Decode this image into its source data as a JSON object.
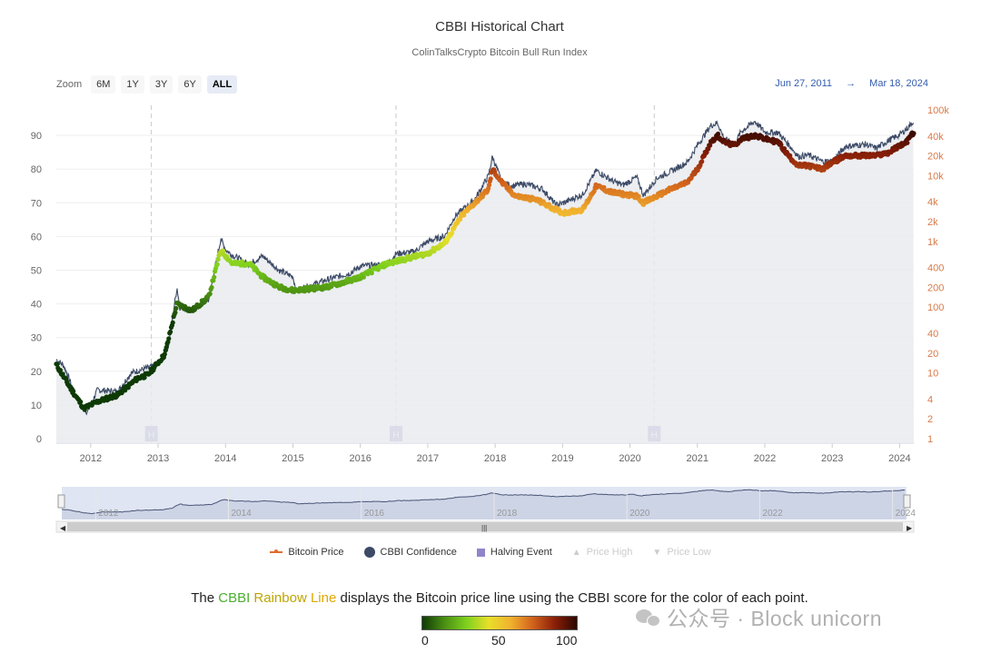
{
  "header": {
    "title": "CBBI Historical Chart",
    "subtitle": "ColinTalksCrypto Bitcoin Bull Run Index"
  },
  "zoom": {
    "label": "Zoom",
    "buttons": [
      "6M",
      "1Y",
      "3Y",
      "6Y",
      "ALL"
    ],
    "active": "ALL"
  },
  "range": {
    "from": "Jun 27, 2011",
    "arrow": "→",
    "to": "Mar 18, 2024"
  },
  "legend": {
    "price": "Bitcoin Price",
    "confidence": "CBBI Confidence",
    "halving": "Halving Event",
    "price_high": "Price High",
    "price_low": "Price Low"
  },
  "caption": {
    "pre": "The ",
    "w1": "CBBI",
    "w2": "Rainbow",
    "w3": "Line",
    "post": " displays the Bitcoin price line using the CBBI score for the color of each point."
  },
  "color_scale": {
    "labels": [
      "0",
      "50",
      "100"
    ],
    "stops": [
      "#0e3a06",
      "#4a8f12",
      "#7fd11e",
      "#e8df2a",
      "#f1b22e",
      "#d2621c",
      "#8a1f08",
      "#2b0600"
    ]
  },
  "watermark": {
    "text": "公众号 · Block unicorn"
  },
  "chart_data": {
    "type": "line",
    "x_ticks": [
      "2012",
      "2013",
      "2014",
      "2015",
      "2016",
      "2017",
      "2018",
      "2019",
      "2020",
      "2021",
      "2022",
      "2023",
      "2024"
    ],
    "navigator_ticks": [
      "2012",
      "2014",
      "2016",
      "2018",
      "2020",
      "2022",
      "2024"
    ],
    "y_left": {
      "ticks": [
        "0",
        "10",
        "20",
        "30",
        "40",
        "50",
        "60",
        "70",
        "80",
        "90"
      ],
      "range": [
        0,
        100
      ]
    },
    "y_right": {
      "ticks": [
        "1",
        "2",
        "4",
        "10",
        "20",
        "40",
        "100",
        "200",
        "400",
        "1k",
        "2k",
        "4k",
        "10k",
        "20k",
        "40k",
        "100k"
      ],
      "scale": "log"
    },
    "halving_label": "H",
    "halvings": [
      2012.9,
      2016.53,
      2020.36
    ],
    "colors": {
      "price_line": "#3c4a66",
      "price_fill": "#e9ebef",
      "halving": "#8f86c9"
    },
    "series": [
      {
        "name": "Bitcoin Price",
        "points": [
          [
            2011.49,
            16
          ],
          [
            2011.6,
            13
          ],
          [
            2011.8,
            4
          ],
          [
            2011.95,
            2.5
          ],
          [
            2012.1,
            5.5
          ],
          [
            2012.4,
            5.2
          ],
          [
            2012.6,
            10
          ],
          [
            2012.85,
            12
          ],
          [
            2013.0,
            13
          ],
          [
            2013.15,
            25
          ],
          [
            2013.28,
            200
          ],
          [
            2013.32,
            100
          ],
          [
            2013.5,
            90
          ],
          [
            2013.75,
            130
          ],
          [
            2013.93,
            1100
          ],
          [
            2014.0,
            750
          ],
          [
            2014.1,
            620
          ],
          [
            2014.35,
            450
          ],
          [
            2014.55,
            600
          ],
          [
            2014.8,
            360
          ],
          [
            2015.0,
            290
          ],
          [
            2015.05,
            180
          ],
          [
            2015.5,
            260
          ],
          [
            2015.85,
            330
          ],
          [
            2016.0,
            420
          ],
          [
            2016.4,
            450
          ],
          [
            2016.53,
            650
          ],
          [
            2016.8,
            700
          ],
          [
            2017.0,
            1000
          ],
          [
            2017.25,
            1200
          ],
          [
            2017.4,
            2400
          ],
          [
            2017.7,
            4400
          ],
          [
            2017.9,
            10000
          ],
          [
            2017.96,
            19500
          ],
          [
            2018.1,
            8000
          ],
          [
            2018.25,
            7000
          ],
          [
            2018.45,
            7500
          ],
          [
            2018.7,
            6300
          ],
          [
            2018.9,
            3600
          ],
          [
            2019.0,
            3800
          ],
          [
            2019.3,
            5200
          ],
          [
            2019.5,
            12000
          ],
          [
            2019.75,
            8200
          ],
          [
            2019.9,
            7200
          ],
          [
            2020.1,
            9500
          ],
          [
            2020.2,
            5000
          ],
          [
            2020.4,
            9200
          ],
          [
            2020.6,
            11500
          ],
          [
            2020.85,
            16000
          ],
          [
            2021.0,
            29000
          ],
          [
            2021.2,
            58000
          ],
          [
            2021.3,
            63000
          ],
          [
            2021.4,
            36000
          ],
          [
            2021.55,
            30000
          ],
          [
            2021.65,
            47000
          ],
          [
            2021.85,
            67000
          ],
          [
            2022.0,
            46000
          ],
          [
            2022.2,
            45000
          ],
          [
            2022.35,
            30000
          ],
          [
            2022.5,
            19500
          ],
          [
            2022.65,
            20500
          ],
          [
            2022.85,
            16500
          ],
          [
            2023.0,
            16600
          ],
          [
            2023.2,
            28000
          ],
          [
            2023.5,
            30000
          ],
          [
            2023.65,
            26000
          ],
          [
            2023.85,
            35000
          ],
          [
            2024.0,
            42000
          ],
          [
            2024.1,
            51000
          ],
          [
            2024.21,
            68000
          ]
        ]
      },
      {
        "name": "CBBI Confidence",
        "points": [
          [
            2011.49,
            22
          ],
          [
            2011.7,
            15
          ],
          [
            2011.9,
            9
          ],
          [
            2012.1,
            11
          ],
          [
            2012.4,
            13
          ],
          [
            2012.7,
            18
          ],
          [
            2012.85,
            19
          ],
          [
            2013.1,
            25
          ],
          [
            2013.28,
            40
          ],
          [
            2013.5,
            38
          ],
          [
            2013.75,
            42
          ],
          [
            2013.93,
            56
          ],
          [
            2014.1,
            52
          ],
          [
            2014.35,
            52
          ],
          [
            2014.55,
            48
          ],
          [
            2014.8,
            45
          ],
          [
            2015.0,
            44
          ],
          [
            2015.5,
            45
          ],
          [
            2015.85,
            47
          ],
          [
            2016.0,
            48
          ],
          [
            2016.4,
            52
          ],
          [
            2016.8,
            54
          ],
          [
            2017.0,
            55
          ],
          [
            2017.25,
            58
          ],
          [
            2017.5,
            66
          ],
          [
            2017.9,
            74
          ],
          [
            2017.96,
            80
          ],
          [
            2018.1,
            76
          ],
          [
            2018.3,
            72
          ],
          [
            2018.6,
            71
          ],
          [
            2018.9,
            68
          ],
          [
            2019.0,
            67
          ],
          [
            2019.3,
            68
          ],
          [
            2019.5,
            75
          ],
          [
            2019.75,
            73
          ],
          [
            2020.1,
            72
          ],
          [
            2020.2,
            70
          ],
          [
            2020.4,
            72
          ],
          [
            2020.6,
            74
          ],
          [
            2020.85,
            76
          ],
          [
            2021.0,
            80
          ],
          [
            2021.2,
            88
          ],
          [
            2021.3,
            90
          ],
          [
            2021.4,
            88
          ],
          [
            2021.55,
            87
          ],
          [
            2021.65,
            89
          ],
          [
            2021.85,
            90
          ],
          [
            2022.0,
            89
          ],
          [
            2022.2,
            88
          ],
          [
            2022.35,
            84
          ],
          [
            2022.5,
            81
          ],
          [
            2022.65,
            81
          ],
          [
            2022.85,
            80
          ],
          [
            2023.0,
            82
          ],
          [
            2023.2,
            84
          ],
          [
            2023.5,
            84
          ],
          [
            2023.65,
            84
          ],
          [
            2023.85,
            85
          ],
          [
            2024.0,
            87
          ],
          [
            2024.1,
            88
          ],
          [
            2024.21,
            91
          ]
        ]
      }
    ]
  }
}
